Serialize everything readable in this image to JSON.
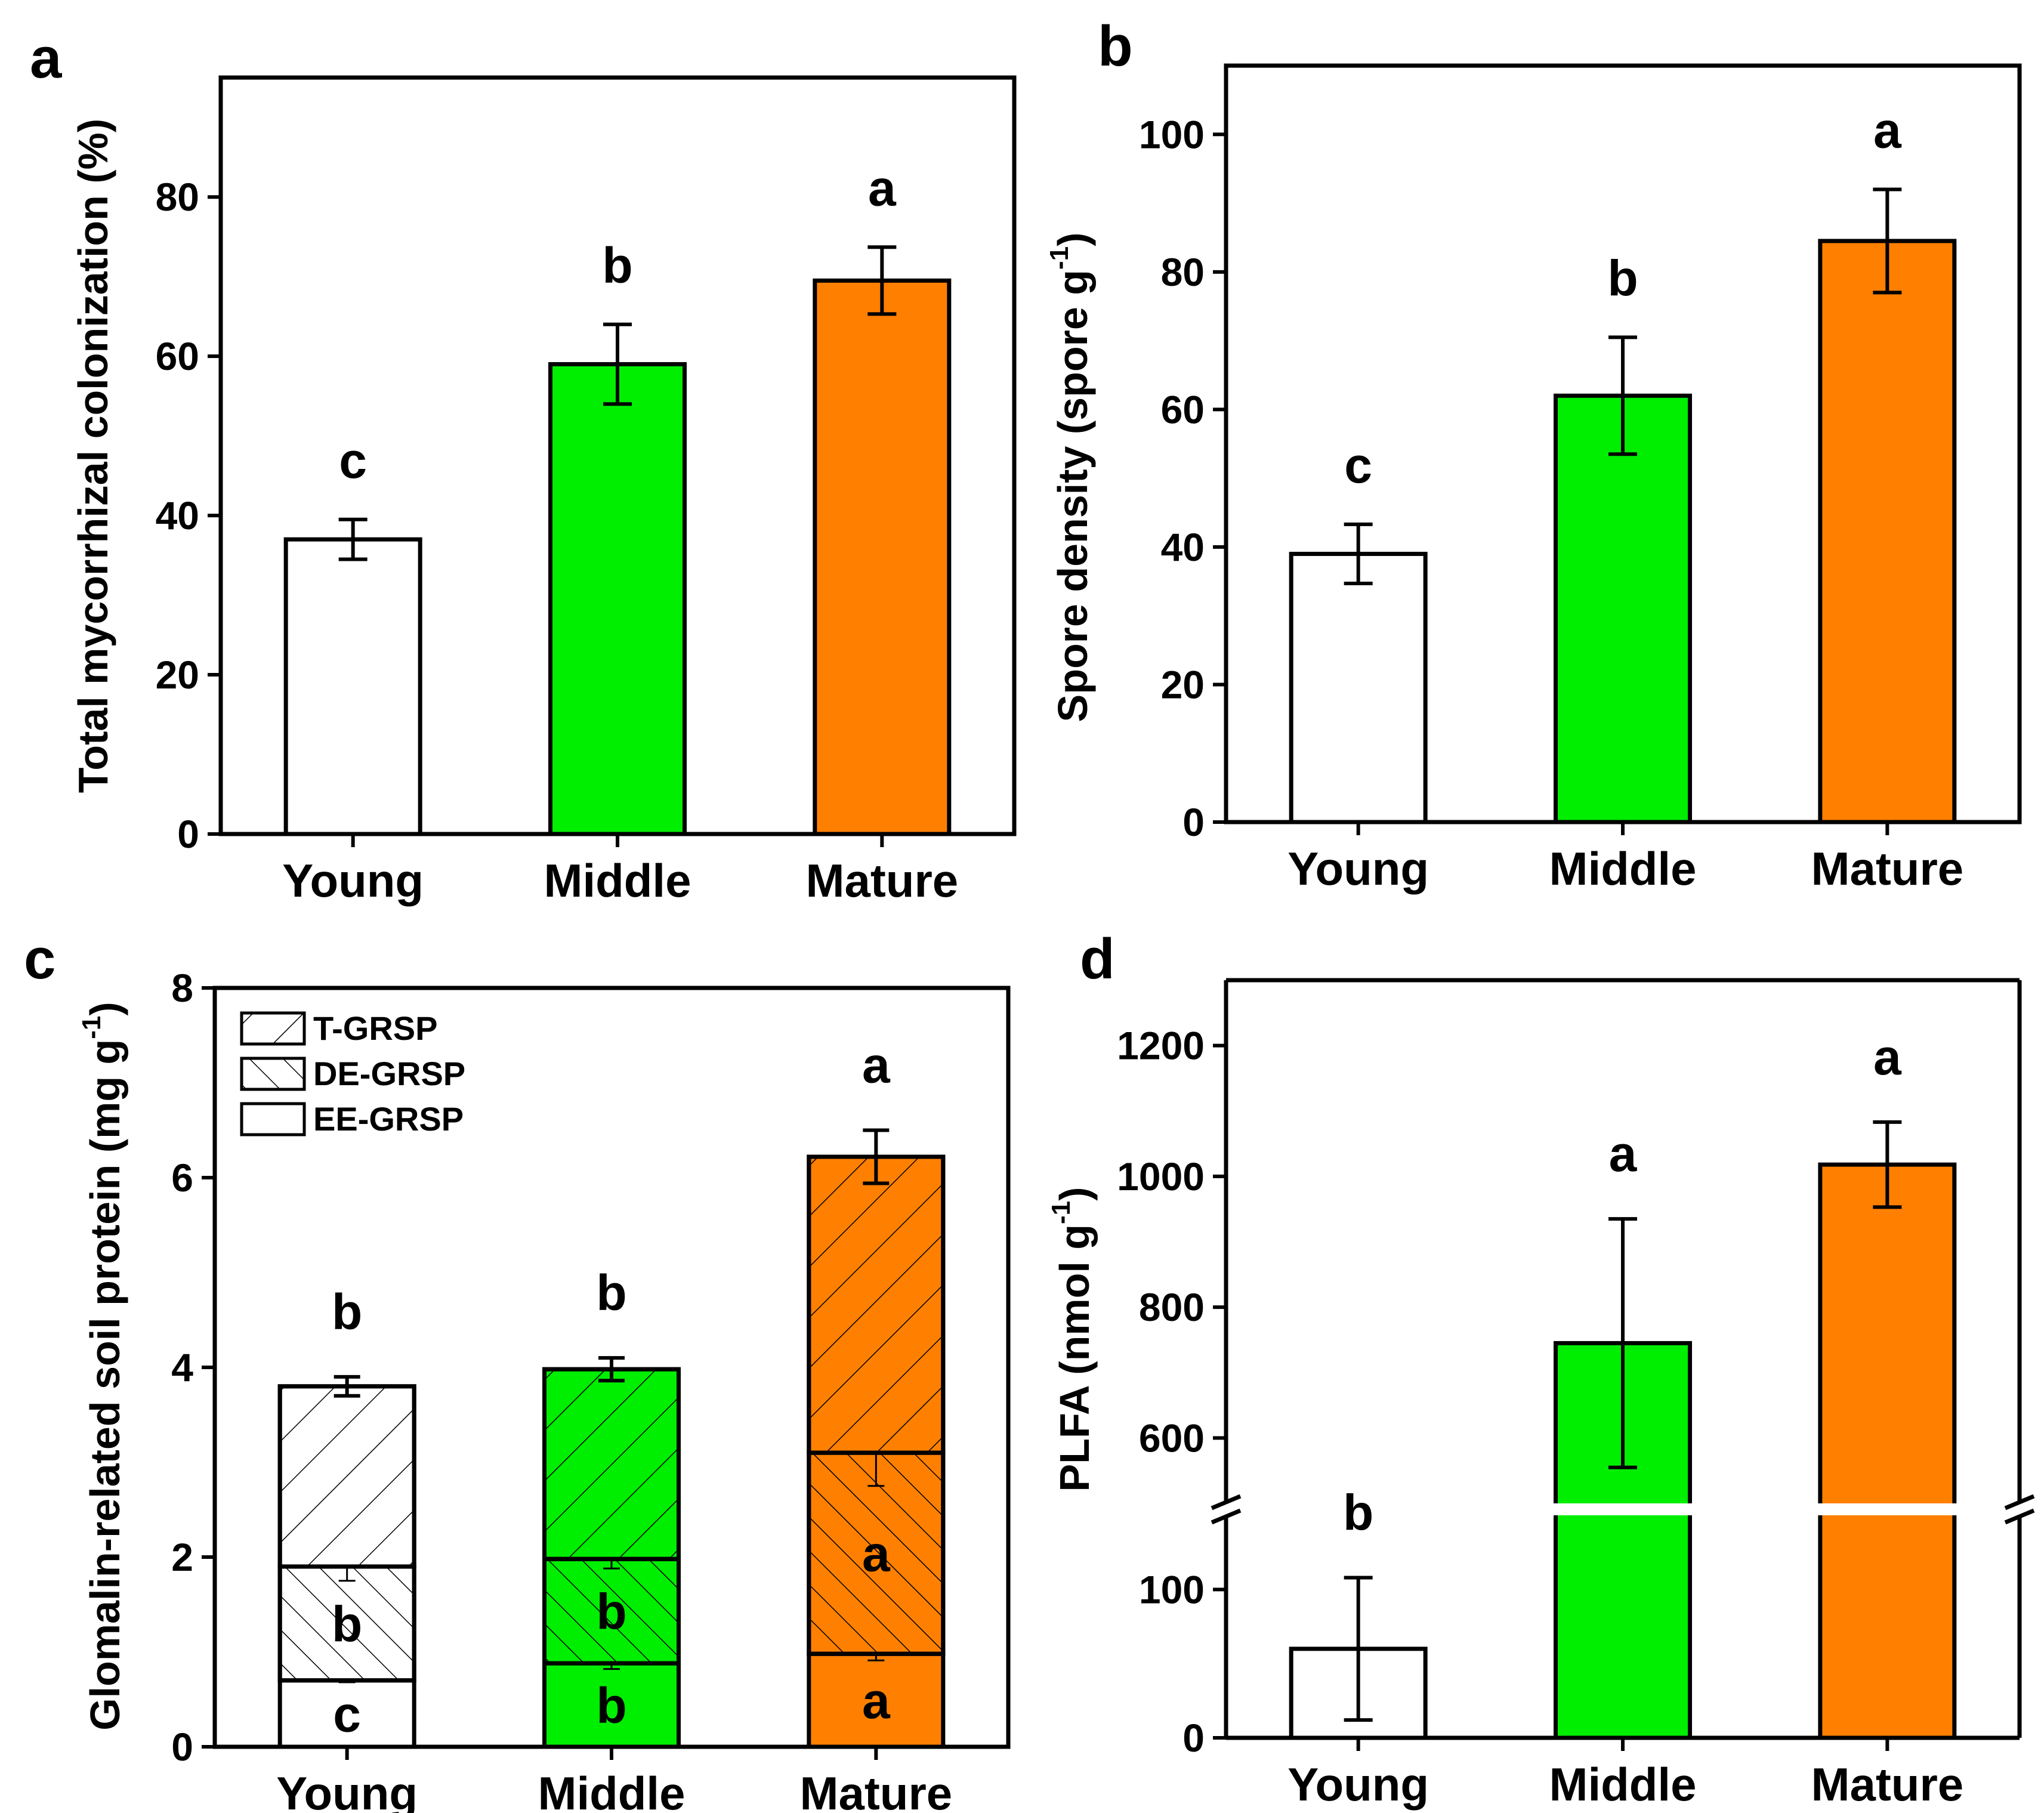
{
  "chart_data": [
    {
      "panel": "a",
      "type": "bar",
      "categories": [
        "Young",
        "Middle",
        "Mature"
      ],
      "values": [
        37,
        59,
        69.5
      ],
      "errors": [
        2.5,
        5,
        4.2
      ],
      "sig": [
        "c",
        "b",
        "a"
      ],
      "colors": [
        "#ffffff",
        "#00ee00",
        "#ff8000"
      ],
      "ylabel": "Total mycorrhizal colonization (%)",
      "ylim": [
        0,
        95
      ],
      "yticks": [
        0,
        20,
        40,
        60,
        80
      ]
    },
    {
      "panel": "b",
      "type": "bar",
      "categories": [
        "Young",
        "Middle",
        "Mature"
      ],
      "values": [
        39,
        62,
        84.5
      ],
      "errors": [
        4.3,
        8.5,
        7.5
      ],
      "sig": [
        "c",
        "b",
        "a"
      ],
      "colors": [
        "#ffffff",
        "#00ee00",
        "#ff8000"
      ],
      "ylabel": "Spore density (spore g",
      "ylabel_sup": "-1",
      "ylabel_suffix": ")",
      "ylim": [
        0,
        110
      ],
      "yticks": [
        0,
        20,
        40,
        60,
        80,
        100
      ]
    },
    {
      "panel": "c",
      "type": "stacked-bar",
      "categories": [
        "Young",
        "Middle",
        "Mature"
      ],
      "series": [
        {
          "name": "EE-GRSP",
          "values": [
            0.7,
            0.88,
            0.98
          ],
          "errors": [
            0.02,
            0.06,
            0.07
          ],
          "sig": [
            "c",
            "b",
            "a"
          ],
          "pattern": "none"
        },
        {
          "name": "DE-GRSP",
          "values": [
            1.2,
            1.1,
            2.12
          ],
          "errors": [
            0.15,
            0.1,
            0.35
          ],
          "sig": [
            "b",
            "b",
            "a"
          ],
          "pattern": "backslash"
        },
        {
          "name": "T-GRSP",
          "values": [
            1.9,
            2.0,
            3.12
          ],
          "errors": [
            0.1,
            0.12,
            0.28
          ],
          "sig": [
            "b",
            "b",
            "a"
          ],
          "pattern": "slash"
        }
      ],
      "colors": [
        "#ffffff",
        "#00ee00",
        "#ff8000"
      ],
      "legend": [
        "T-GRSP",
        "DE-GRSP",
        "EE-GRSP"
      ],
      "ylabel": "Glomalin-related soil protein (mg g",
      "ylabel_sup": "-1",
      "ylabel_suffix": ")",
      "ylim": [
        0,
        8
      ],
      "yticks": [
        0,
        2,
        4,
        6,
        8
      ]
    },
    {
      "panel": "d",
      "type": "bar",
      "broken_axis": true,
      "categories": [
        "Young",
        "Middle",
        "Mature"
      ],
      "values": [
        60,
        745,
        1018
      ],
      "errors": [
        48,
        190,
        65
      ],
      "sig": [
        "b",
        "a",
        "a"
      ],
      "colors": [
        "#ffffff",
        "#00ee00",
        "#ff8000"
      ],
      "ylabel": "PLFA (nmol g",
      "ylabel_sup": "-1",
      "ylabel_suffix": ")",
      "lower_ylim": [
        0,
        150
      ],
      "upper_ylim": [
        500,
        1300
      ],
      "yticks_lower": [
        0,
        100
      ],
      "yticks_upper": [
        600,
        800,
        1000,
        1200
      ]
    }
  ]
}
